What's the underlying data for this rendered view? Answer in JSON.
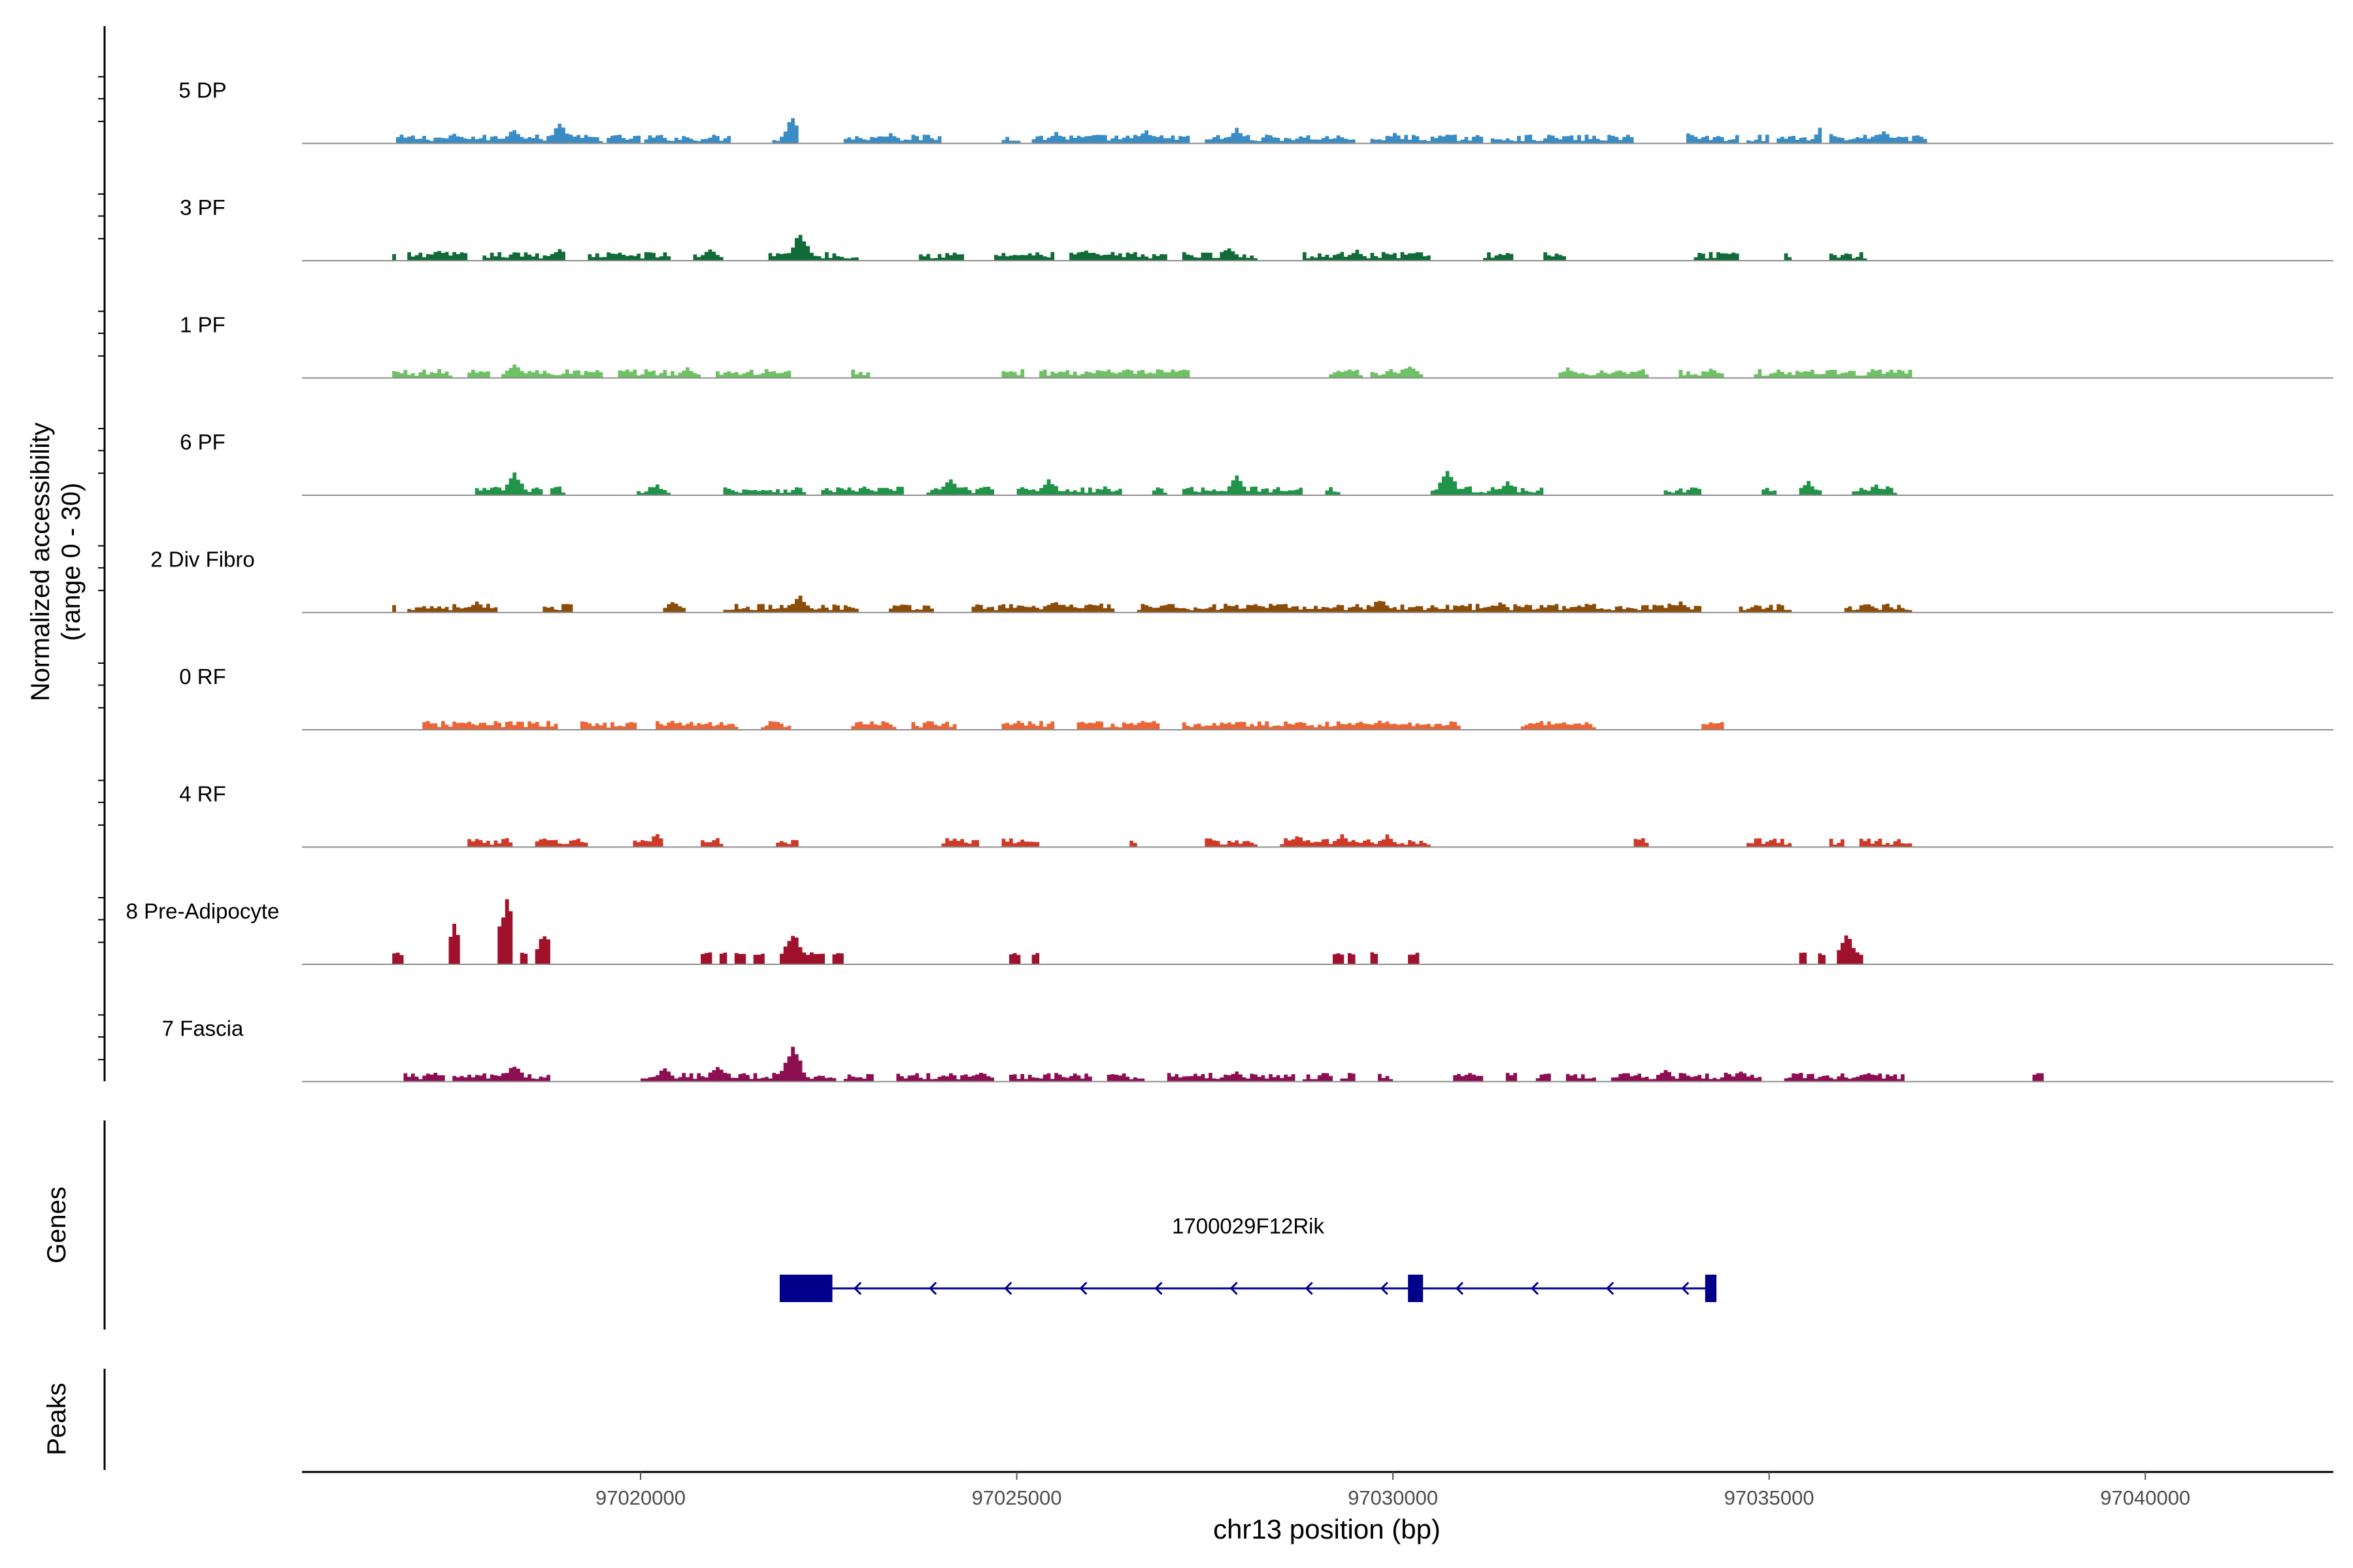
{
  "chart_data": {
    "type": "coverage",
    "y_title_line1": "Normalized accessibility",
    "y_title_line2": "(range 0 - 30)",
    "xlabel": "chr13 position (bp)",
    "xlim": [
      97015500,
      97042500
    ],
    "ylim": [
      0,
      30
    ],
    "x_ticks": [
      97020000,
      97025000,
      97030000,
      97035000,
      97040000
    ],
    "x_tick_labels": [
      "97020000",
      "97025000",
      "97030000",
      "97035000",
      "97040000"
    ],
    "genes_label": "Genes",
    "peaks_label": "Peaks",
    "tracks": [
      {
        "name": "5 DP",
        "color": "#3a8cc4",
        "segments": [
          [
            97016750,
            97019500
          ],
          [
            97019550,
            97020000
          ],
          [
            97020050,
            97021200
          ],
          [
            97021750,
            97022100
          ],
          [
            97022700,
            97024000
          ],
          [
            97024800,
            97025050
          ],
          [
            97025200,
            97027300
          ],
          [
            97027500,
            97029500
          ],
          [
            97029700,
            97031200
          ],
          [
            97031300,
            97033200
          ],
          [
            97033900,
            97034600
          ],
          [
            97034700,
            97035000
          ],
          [
            97035100,
            97035700
          ],
          [
            97035800,
            97037100
          ]
        ],
        "peaks": [
          [
            97017500,
            3
          ],
          [
            97018300,
            4.5
          ],
          [
            97018900,
            6
          ],
          [
            97022000,
            8
          ],
          [
            97023300,
            3
          ],
          [
            97025500,
            3.5
          ],
          [
            97026700,
            4
          ],
          [
            97027900,
            4.5
          ],
          [
            97030000,
            3
          ],
          [
            97033900,
            3.5
          ],
          [
            97035700,
            6
          ],
          [
            97036500,
            3.5
          ]
        ]
      },
      {
        "name": "3 PF",
        "color": "#116b39",
        "segments": [
          [
            97016700,
            97016750
          ],
          [
            97016900,
            97017700
          ],
          [
            97017900,
            97019000
          ],
          [
            97019300,
            97020400
          ],
          [
            97020700,
            97021100
          ],
          [
            97021700,
            97022900
          ],
          [
            97023700,
            97024300
          ],
          [
            97024700,
            97025500
          ],
          [
            97025700,
            97027000
          ],
          [
            97027200,
            97028200
          ],
          [
            97028800,
            97030500
          ],
          [
            97031200,
            97031600
          ],
          [
            97032000,
            97032300
          ],
          [
            97034000,
            97034600
          ],
          [
            97035200,
            97035300
          ],
          [
            97035800,
            97036300
          ]
        ],
        "peaks": [
          [
            97017300,
            3
          ],
          [
            97018900,
            4
          ],
          [
            97020900,
            3.5
          ],
          [
            97022100,
            9
          ],
          [
            97025900,
            3
          ],
          [
            97027800,
            4
          ],
          [
            97029500,
            3
          ],
          [
            97030300,
            3
          ],
          [
            97034500,
            2.5
          ]
        ]
      },
      {
        "name": "1 PF",
        "color": "#6ec165",
        "segments": [
          [
            97016700,
            97017500
          ],
          [
            97017700,
            97018000
          ],
          [
            97018150,
            97019500
          ],
          [
            97019700,
            97020800
          ],
          [
            97021000,
            97022000
          ],
          [
            97022800,
            97023050
          ],
          [
            97024800,
            97025100
          ],
          [
            97025300,
            97027300
          ],
          [
            97029150,
            97029600
          ],
          [
            97029700,
            97030400
          ],
          [
            97032200,
            97033400
          ],
          [
            97033800,
            97034400
          ],
          [
            97034800,
            97036900
          ]
        ],
        "peaks": [
          [
            97018300,
            4.5
          ],
          [
            97020600,
            3
          ],
          [
            97029400,
            3
          ],
          [
            97030200,
            3.5
          ],
          [
            97032300,
            3
          ],
          [
            97033000,
            2.5
          ],
          [
            97034200,
            2.5
          ],
          [
            97035800,
            2.5
          ],
          [
            97036600,
            2.5
          ]
        ]
      },
      {
        "name": "6 PF",
        "color": "#21944a",
        "segments": [
          [
            97017800,
            97018700
          ],
          [
            97018800,
            97019000
          ],
          [
            97019950,
            97020400
          ],
          [
            97021100,
            97022200
          ],
          [
            97022400,
            97023500
          ],
          [
            97023800,
            97024700
          ],
          [
            97025000,
            97026400
          ],
          [
            97026800,
            97027000
          ],
          [
            97027200,
            97028800
          ],
          [
            97029100,
            97029300
          ],
          [
            97030500,
            97032000
          ],
          [
            97033600,
            97034100
          ],
          [
            97034900,
            97035100
          ],
          [
            97035400,
            97035700
          ],
          [
            97036100,
            97036700
          ]
        ],
        "peaks": [
          [
            97018300,
            6.5
          ],
          [
            97020200,
            3
          ],
          [
            97022300,
            3
          ],
          [
            97024100,
            5
          ],
          [
            97025400,
            5
          ],
          [
            97027900,
            5.5
          ],
          [
            97030700,
            8
          ],
          [
            97031500,
            4
          ],
          [
            97035500,
            4
          ],
          [
            97036400,
            3
          ]
        ]
      },
      {
        "name": "2 Div Fibro",
        "color": "#8a4d0a",
        "segments": [
          [
            97016700,
            97016750
          ],
          [
            97016900,
            97018100
          ],
          [
            97018700,
            97019100
          ],
          [
            97020300,
            97020600
          ],
          [
            97021100,
            97022900
          ],
          [
            97023300,
            97023900
          ],
          [
            97024400,
            97026300
          ],
          [
            97026600,
            97034100
          ],
          [
            97034600,
            97035300
          ],
          [
            97036000,
            97036900
          ]
        ],
        "peaks": [
          [
            97017800,
            3
          ],
          [
            97020400,
            3
          ],
          [
            97022100,
            5
          ],
          [
            97025500,
            3.5
          ],
          [
            97029800,
            4
          ],
          [
            97031400,
            3
          ],
          [
            97033800,
            3
          ],
          [
            97036300,
            2.5
          ]
        ]
      },
      {
        "name": "0 RF",
        "color": "#ea6636",
        "segments": [
          [
            97017100,
            97018900
          ],
          [
            97019200,
            97019950
          ],
          [
            97020200,
            97021300
          ],
          [
            97021600,
            97022000
          ],
          [
            97022800,
            97023400
          ],
          [
            97023600,
            97024200
          ],
          [
            97024800,
            97025500
          ],
          [
            97025800,
            97026900
          ],
          [
            97027200,
            97030900
          ],
          [
            97031700,
            97032700
          ],
          [
            97034100,
            97034400
          ]
        ],
        "peaks": [
          [
            97017600,
            2.5
          ],
          [
            97020400,
            2.5
          ],
          [
            97025000,
            2.5
          ],
          [
            97029800,
            3
          ],
          [
            97031900,
            2
          ]
        ]
      },
      {
        "name": "4 RF",
        "color": "#cf3a28",
        "segments": [
          [
            97017700,
            97018300
          ],
          [
            97018600,
            97019300
          ],
          [
            97019900,
            97020300
          ],
          [
            97020800,
            97021100
          ],
          [
            97021800,
            97022100
          ],
          [
            97024000,
            97024500
          ],
          [
            97024800,
            97025300
          ],
          [
            97026500,
            97026600
          ],
          [
            97027500,
            97028200
          ],
          [
            97028500,
            97030500
          ],
          [
            97033200,
            97033400
          ],
          [
            97034700,
            97035300
          ],
          [
            97035800,
            97036000
          ],
          [
            97036200,
            97036900
          ]
        ],
        "peaks": [
          [
            97017800,
            2.5
          ],
          [
            97020200,
            4
          ],
          [
            97028700,
            3.5
          ],
          [
            97029300,
            3.5
          ],
          [
            97029900,
            3.5
          ],
          [
            97035000,
            2
          ]
        ]
      },
      {
        "name": "8 Pre-Adipocyte",
        "color": "#a0122c",
        "segments": [
          [
            97016700,
            97016850
          ],
          [
            97017450,
            97017600
          ],
          [
            97018100,
            97018300
          ],
          [
            97018400,
            97018500
          ],
          [
            97018600,
            97018800
          ],
          [
            97020800,
            97020950
          ],
          [
            97021050,
            97021150
          ],
          [
            97021250,
            97021400
          ],
          [
            97021500,
            97021650
          ],
          [
            97021850,
            97022450
          ],
          [
            97022550,
            97022700
          ],
          [
            97024900,
            97025050
          ],
          [
            97025200,
            97025300
          ],
          [
            97029200,
            97029350
          ],
          [
            97029400,
            97029500
          ],
          [
            97029700,
            97029800
          ],
          [
            97030200,
            97030350
          ],
          [
            97035400,
            97035500
          ],
          [
            97035650,
            97035750
          ],
          [
            97035900,
            97036250
          ]
        ],
        "peaks": [
          [
            97017500,
            11
          ],
          [
            97018200,
            22
          ],
          [
            97018700,
            10
          ],
          [
            97022000,
            10
          ],
          [
            97036000,
            10
          ]
        ]
      },
      {
        "name": "7 Fascia",
        "color": "#8c0f52",
        "segments": [
          [
            97016850,
            97017400
          ],
          [
            97017500,
            97018800
          ],
          [
            97020000,
            97022600
          ],
          [
            97022700,
            97023100
          ],
          [
            97023400,
            97024700
          ],
          [
            97024900,
            97026000
          ],
          [
            97026200,
            97026700
          ],
          [
            97027000,
            97028700
          ],
          [
            97028800,
            97029200
          ],
          [
            97029300,
            97029500
          ],
          [
            97029800,
            97030000
          ],
          [
            97030800,
            97031200
          ],
          [
            97031500,
            97031650
          ],
          [
            97031900,
            97032100
          ],
          [
            97032300,
            97032700
          ],
          [
            97032900,
            97034900
          ],
          [
            97035200,
            97036800
          ],
          [
            97038500,
            97038650
          ]
        ],
        "peaks": [
          [
            97018300,
            5
          ],
          [
            97020300,
            4
          ],
          [
            97021000,
            5
          ],
          [
            97022000,
            12
          ],
          [
            97024500,
            3
          ],
          [
            97027900,
            3
          ],
          [
            97031600,
            3
          ],
          [
            97033600,
            3.5
          ],
          [
            97034600,
            3
          ],
          [
            97036300,
            3
          ],
          [
            97038550,
            2.5
          ]
        ]
      }
    ],
    "gene": {
      "name": "1700029F12Rik",
      "start": 97021850,
      "end": 97034300,
      "strand": "-",
      "exons": [
        [
          97021850,
          97022550
        ],
        [
          97030200,
          97030400
        ],
        [
          97034150,
          97034300
        ]
      ],
      "color": "#00008b"
    }
  }
}
